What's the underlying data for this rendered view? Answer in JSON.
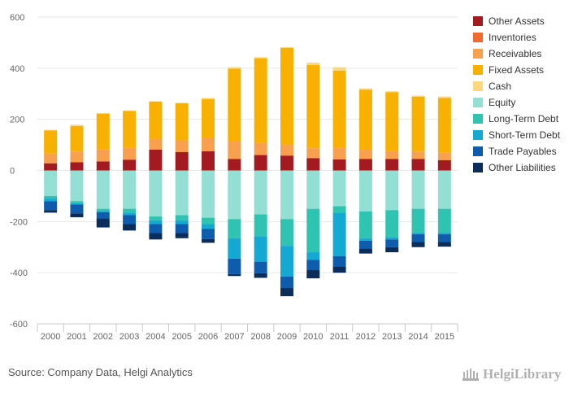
{
  "chart_data": {
    "type": "bar",
    "stacked": true,
    "categories": [
      "2000",
      "2001",
      "2002",
      "2003",
      "2004",
      "2005",
      "2006",
      "2007",
      "2008",
      "2009",
      "2010",
      "2011",
      "2012",
      "2013",
      "2014",
      "2015"
    ],
    "ylim": [
      -600,
      600
    ],
    "yticks": [
      -600,
      -400,
      -200,
      0,
      200,
      400,
      600
    ],
    "grid": true,
    "legend_position": "right",
    "series": [
      {
        "name": "Other Assets",
        "color": "#a31b20",
        "values": [
          28,
          32,
          35,
          42,
          82,
          72,
          75,
          45,
          60,
          58,
          48,
          43,
          45,
          45,
          45,
          40
        ]
      },
      {
        "name": "Inventories",
        "color": "#f26a2e",
        "values": [
          1,
          1,
          1,
          1,
          1,
          1,
          1,
          1,
          2,
          2,
          1,
          1,
          1,
          1,
          1,
          1
        ]
      },
      {
        "name": "Receivables",
        "color": "#f8a04d",
        "values": [
          37,
          41,
          46,
          45,
          41,
          45,
          53,
          67,
          47,
          40,
          38,
          46,
          35,
          30,
          28,
          28
        ]
      },
      {
        "name": "Fixed Assets",
        "color": "#f9b100",
        "values": [
          90,
          100,
          140,
          145,
          145,
          145,
          150,
          285,
          330,
          380,
          325,
          300,
          235,
          230,
          215,
          215
        ]
      },
      {
        "name": "Cash",
        "color": "#fdd77f",
        "values": [
          3,
          5,
          3,
          2,
          2,
          2,
          5,
          6,
          4,
          2,
          10,
          14,
          5,
          4,
          4,
          5
        ]
      },
      {
        "name": "Equity",
        "color": "#93dfd4",
        "values": [
          -100,
          -120,
          -150,
          -150,
          -180,
          -175,
          -185,
          -190,
          -172,
          -190,
          -150,
          -140,
          -160,
          -155,
          -150,
          -150
        ]
      },
      {
        "name": "Long-Term Debt",
        "color": "#2fc3b1",
        "values": [
          -10,
          -8,
          -8,
          -15,
          -15,
          -20,
          -25,
          -75,
          -85,
          -105,
          -170,
          -25,
          -105,
          -105,
          -95,
          -95
        ]
      },
      {
        "name": "Short-Term Debt",
        "color": "#14a9d3",
        "values": [
          -10,
          -5,
          -5,
          -10,
          -15,
          -15,
          -18,
          -80,
          -100,
          -120,
          -30,
          -170,
          -10,
          -10,
          -5,
          -5
        ]
      },
      {
        "name": "Trade Payables",
        "color": "#0d5cae",
        "values": [
          -35,
          -35,
          -25,
          -35,
          -35,
          -35,
          -40,
          -60,
          -45,
          -45,
          -40,
          -40,
          -30,
          -30,
          -30,
          -30
        ]
      },
      {
        "name": "Other Liabilities",
        "color": "#0b2d5b",
        "values": [
          -10,
          -15,
          -35,
          -25,
          -25,
          -20,
          -15,
          -8,
          -18,
          -32,
          -32,
          -25,
          -20,
          -20,
          -20,
          -18
        ]
      }
    ]
  },
  "footer": {
    "source": "Source: Company Data, Helgi Analytics"
  },
  "logo": {
    "text": "HelgiLibrary"
  }
}
